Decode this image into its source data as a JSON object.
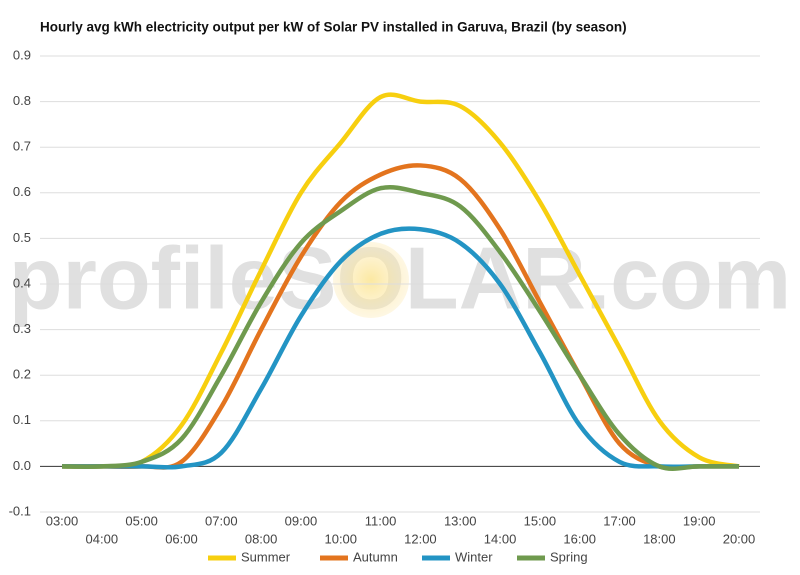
{
  "chart_data": {
    "type": "line",
    "title": "Hourly avg kWh electricity output per kW of Solar PV installed in Garuva, Brazil (by season)",
    "watermark": "profileSOLAR.com",
    "categories": [
      "03:00",
      "04:00",
      "05:00",
      "06:00",
      "07:00",
      "08:00",
      "09:00",
      "10:00",
      "11:00",
      "12:00",
      "13:00",
      "14:00",
      "15:00",
      "16:00",
      "17:00",
      "18:00",
      "19:00",
      "20:00"
    ],
    "series": [
      {
        "name": "Summer",
        "color": "#f7cf0f",
        "values": [
          0,
          0,
          0.01,
          0.09,
          0.25,
          0.43,
          0.6,
          0.71,
          0.81,
          0.8,
          0.79,
          0.71,
          0.58,
          0.42,
          0.26,
          0.1,
          0.02,
          0
        ]
      },
      {
        "name": "Autumn",
        "color": "#e3741e",
        "values": [
          0,
          0,
          0,
          0.01,
          0.13,
          0.3,
          0.46,
          0.58,
          0.64,
          0.66,
          0.63,
          0.52,
          0.36,
          0.2,
          0.05,
          0,
          0,
          0
        ]
      },
      {
        "name": "Winter",
        "color": "#2394c4",
        "values": [
          0,
          0,
          0,
          0,
          0.03,
          0.17,
          0.33,
          0.45,
          0.51,
          0.52,
          0.49,
          0.4,
          0.25,
          0.09,
          0.01,
          0,
          0,
          0
        ]
      },
      {
        "name": "Spring",
        "color": "#6f9a4e",
        "values": [
          0,
          0,
          0.01,
          0.06,
          0.2,
          0.36,
          0.49,
          0.56,
          0.61,
          0.6,
          0.57,
          0.47,
          0.34,
          0.2,
          0.07,
          0,
          0,
          0
        ]
      }
    ],
    "ylim": [
      -0.1,
      0.9
    ],
    "yticks": [
      {
        "value": -0.1,
        "label": "-0.1"
      },
      {
        "value": 0,
        "label": "0.0"
      },
      0.1,
      0.2,
      0.3,
      0.4,
      0.5,
      0.6,
      0.7,
      0.8,
      0.9
    ],
    "grid": true,
    "legend": "bottom"
  }
}
